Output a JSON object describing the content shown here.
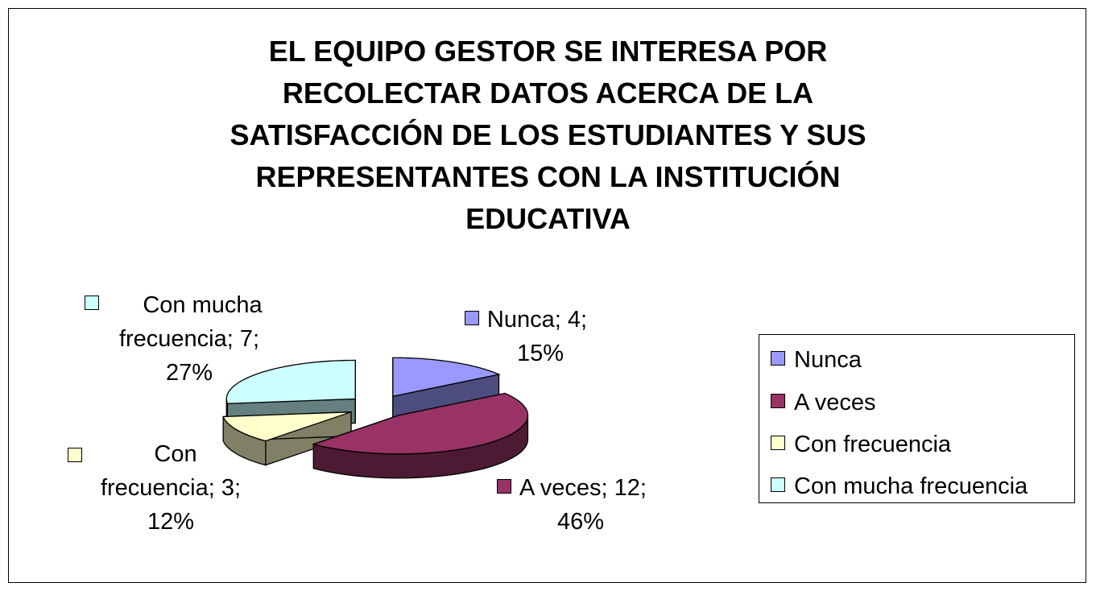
{
  "chart_data": {
    "type": "pie",
    "title": "EL EQUIPO GESTOR SE INTERESA POR RECOLECTAR DATOS ACERCA DE LA SATISFACCIÓN DE LOS ESTUDIANTES Y SUS REPRESENTANTES CON LA INSTITUCIÓN EDUCATIVA",
    "title_lines": [
      "EL EQUIPO GESTOR SE INTERESA POR",
      "RECOLECTAR DATOS ACERCA DE LA",
      "SATISFACCIÓN DE LOS ESTUDIANTES Y SUS",
      "REPRESENTANTES CON LA INSTITUCIÓN",
      "EDUCATIVA"
    ],
    "exploded": true,
    "three_d": true,
    "legend_position": "right",
    "slices": [
      {
        "label": "Nunca",
        "value": 4,
        "percent": "15%",
        "color": "#9999FF",
        "side_color": "#4D4D80",
        "data_label_lines": [
          "Nunca; 4;",
          "15%"
        ]
      },
      {
        "label": "A veces",
        "value": 12,
        "percent": "46%",
        "color": "#993366",
        "side_color": "#4D1A33",
        "data_label_lines": [
          "A veces; 12;",
          "46%"
        ]
      },
      {
        "label": "Con frecuencia",
        "value": 3,
        "percent": "12%",
        "color": "#FFFFCC",
        "side_color": "#808066",
        "data_label_lines": [
          "Con",
          "frecuencia; 3;",
          "12%"
        ]
      },
      {
        "label": "Con mucha frecuencia",
        "value": 7,
        "percent": "27%",
        "color": "#CCFFFF",
        "side_color": "#668080",
        "data_label_lines": [
          "Con mucha",
          "frecuencia; 7;",
          "27%"
        ]
      }
    ]
  }
}
